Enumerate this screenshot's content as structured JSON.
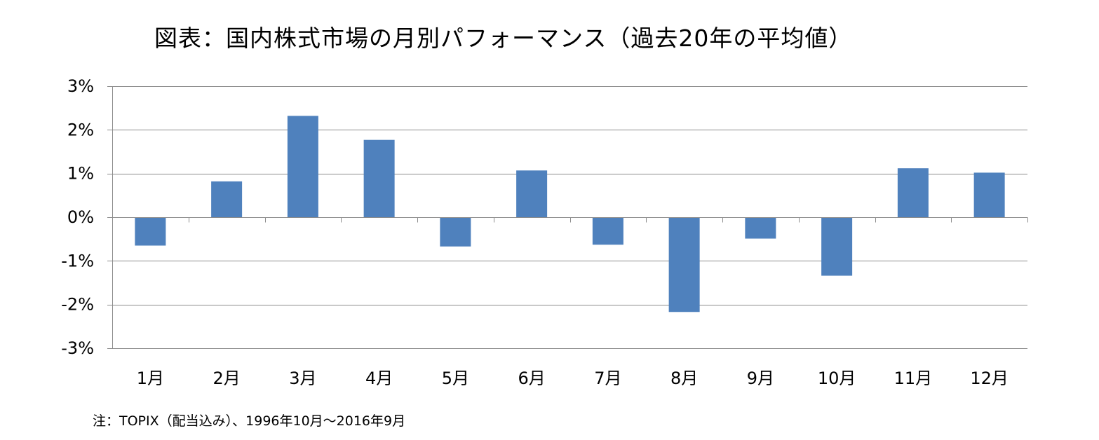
{
  "chart_data": {
    "type": "bar",
    "title": "図表：国内株式市場の月別パフォーマンス（過去20年の平均値）",
    "xlabel": "",
    "ylabel": "",
    "categories": [
      "1月",
      "2月",
      "3月",
      "4月",
      "5月",
      "6月",
      "7月",
      "8月",
      "9月",
      "10月",
      "11月",
      "12月"
    ],
    "series": [
      {
        "name": "TOPIX",
        "values": [
          -0.65,
          0.82,
          2.32,
          1.77,
          -0.67,
          1.07,
          -0.63,
          -2.17,
          -0.49,
          -1.34,
          1.12,
          1.02
        ],
        "color": "#4f81bd"
      }
    ],
    "ylim": [
      -3,
      3
    ],
    "yticks": [
      3,
      2,
      1,
      0,
      -1,
      -2,
      -3
    ],
    "ytick_labels": [
      "3%",
      "2%",
      "1%",
      "0%",
      "-1%",
      "-2%",
      "-3%"
    ],
    "grid": true,
    "legend": "none",
    "note": "注：TOPIX（配当込み）、1996年10月～2016年9月"
  },
  "colors": {
    "bar": "#4f81bd",
    "grid": "#8c8c8c",
    "axis": "#8c8c8c"
  }
}
